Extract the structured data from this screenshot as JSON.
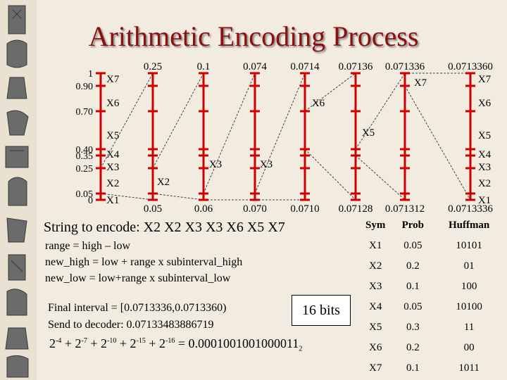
{
  "title": "Arithmetic Encoding Process",
  "interval_bars": [
    {
      "top": "1",
      "bottom": "0",
      "marks": [
        "1",
        "0.90",
        "0.70",
        "0.40",
        "0.35",
        "0.25",
        "0.05",
        "0"
      ]
    },
    {
      "top": "0.25",
      "bottom": "0.05"
    },
    {
      "top": "0.1",
      "bottom": "0.06"
    },
    {
      "top": "0.074",
      "bottom": "0.070"
    },
    {
      "top": "0.0714",
      "bottom": "0.0710"
    },
    {
      "top": "0.07136",
      "bottom": "0.07128"
    },
    {
      "top": "0.071336",
      "bottom": "0.071312"
    },
    {
      "top": "0.0713360",
      "bottom": "0.0713336"
    }
  ],
  "symbol_labels": [
    "X7",
    "X6",
    "X5",
    "X4",
    "X3",
    "X2",
    "X1"
  ],
  "chosen_labels": [
    "X2",
    "X3",
    "X3",
    "X6",
    "X5",
    "X7"
  ],
  "string_line": "String to encode: X2 X2 X3 X3 X6 X5 X7",
  "formulas": [
    "range = high – low",
    "new_high = low + range x subinterval_high",
    "new_low = low+range x subinterval_low"
  ],
  "final_interval": "Final interval = [0.0713336,0.0713360)",
  "send_line": "Send to decoder: 0.07133483886719",
  "binary_expression": {
    "terms": [
      {
        "base": "2",
        "exp": "-4"
      },
      {
        "base": "2",
        "exp": "-7"
      },
      {
        "base": "2",
        "exp": "-10"
      },
      {
        "base": "2",
        "exp": "-15"
      },
      {
        "base": "2",
        "exp": "-16"
      }
    ],
    "result": "0.0001001001000011",
    "subscript": "2"
  },
  "bits_box": "16 bits",
  "table": {
    "headers": [
      "Sym",
      "Prob",
      "Huffman"
    ],
    "rows": [
      [
        "X1",
        "0.05",
        "10101"
      ],
      [
        "X2",
        "0.2",
        "01"
      ],
      [
        "X3",
        "0.1",
        "100"
      ],
      [
        "X4",
        "0.05",
        "10100"
      ],
      [
        "X5",
        "0.3",
        "11"
      ],
      [
        "X6",
        "0.2",
        "00"
      ],
      [
        "X7",
        "0.1",
        "1011"
      ]
    ]
  },
  "colors": {
    "bar": "#cc0000",
    "title": "#8b1010",
    "background": "#f2ebe0"
  }
}
